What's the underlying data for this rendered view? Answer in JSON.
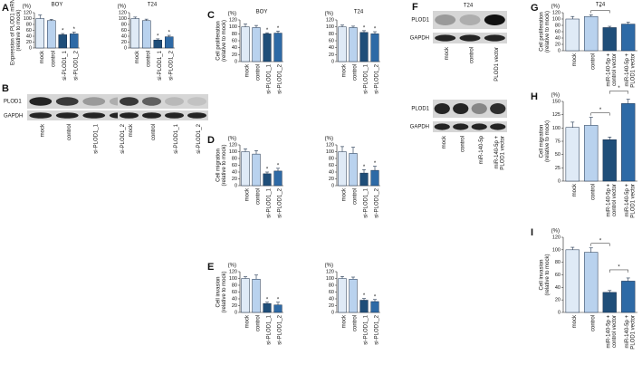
{
  "chart_data": [
    {
      "type": "bar",
      "panel": "A",
      "title": "BOY",
      "yunit": "(%)",
      "ylabel": [
        "Expression of PLOD1 mRNA",
        "(relative to mock)"
      ],
      "categories": [
        "mock",
        "control",
        "si-PLOD1_1",
        "si-PLOD1_2"
      ],
      "values": [
        100,
        93,
        45,
        48
      ],
      "errors": [
        12,
        4,
        4,
        6
      ],
      "stars": [
        null,
        null,
        "*",
        "*"
      ],
      "colors": [
        "#dfeaf6",
        "#b9d2ee",
        "#1f4e79",
        "#2e6aa6"
      ],
      "ylim": [
        0,
        120
      ],
      "yticks": [
        0,
        20,
        40,
        60,
        80,
        100,
        120
      ]
    },
    {
      "type": "bar",
      "title": "T24",
      "yunit": "(%)",
      "categories": [
        "mock",
        "control",
        "si-PLOD1_1",
        "si-PLOD1_2"
      ],
      "values": [
        100,
        93,
        27,
        38
      ],
      "errors": [
        5,
        5,
        4,
        5
      ],
      "stars": [
        null,
        null,
        "*",
        "*"
      ],
      "colors": [
        "#dfeaf6",
        "#b9d2ee",
        "#1f4e79",
        "#2e6aa6"
      ],
      "ylim": [
        0,
        120
      ],
      "yticks": [
        0,
        20,
        40,
        60,
        80,
        100,
        120
      ]
    },
    {
      "type": "bar",
      "panel": "C",
      "title": "BOY",
      "yunit": "(%)",
      "ylabel": [
        "Cell proliferation",
        "(relative to mock)"
      ],
      "categories": [
        "mock",
        "control",
        "si-PLOD1_1",
        "si-PLOD1_2"
      ],
      "values": [
        100,
        98,
        80,
        82
      ],
      "errors": [
        8,
        6,
        3,
        6
      ],
      "stars": [
        null,
        null,
        "*",
        "*"
      ],
      "colors": [
        "#dfeaf6",
        "#b9d2ee",
        "#1f4e79",
        "#2e6aa6"
      ],
      "ylim": [
        0,
        120
      ],
      "yticks": [
        0,
        20,
        40,
        60,
        80,
        100,
        120
      ]
    },
    {
      "type": "bar",
      "title": "T24",
      "yunit": "(%)",
      "categories": [
        "mock",
        "control",
        "si-PLOD1_1",
        "si-PLOD1_2"
      ],
      "values": [
        100,
        98,
        84,
        80
      ],
      "errors": [
        5,
        4,
        5,
        6
      ],
      "stars": [
        null,
        null,
        "*",
        "*"
      ],
      "colors": [
        "#dfeaf6",
        "#b9d2ee",
        "#1f4e79",
        "#2e6aa6"
      ],
      "ylim": [
        0,
        120
      ],
      "yticks": [
        0,
        20,
        40,
        60,
        80,
        100,
        120
      ]
    },
    {
      "type": "bar",
      "panel": "D",
      "yunit": "(%)",
      "ylabel": [
        "Cell migration",
        "(relative to mock)"
      ],
      "categories": [
        "mock",
        "control",
        "si-PLOD1_1",
        "si-PLOD1_2"
      ],
      "values": [
        100,
        93,
        35,
        43
      ],
      "errors": [
        8,
        10,
        5,
        8
      ],
      "stars": [
        null,
        null,
        "*",
        "*"
      ],
      "colors": [
        "#dfeaf6",
        "#b9d2ee",
        "#1f4e79",
        "#2e6aa6"
      ],
      "ylim": [
        0,
        120
      ],
      "yticks": [
        0,
        20,
        40,
        60,
        80,
        100,
        120
      ]
    },
    {
      "type": "bar",
      "yunit": "(%)",
      "categories": [
        "mock",
        "control",
        "si-PLOD1_1",
        "si-PLOD1_2"
      ],
      "values": [
        100,
        95,
        37,
        45
      ],
      "errors": [
        15,
        18,
        10,
        12
      ],
      "stars": [
        null,
        null,
        "*",
        "*"
      ],
      "colors": [
        "#dfeaf6",
        "#b9d2ee",
        "#1f4e79",
        "#2e6aa6"
      ],
      "ylim": [
        0,
        120
      ],
      "yticks": [
        0,
        20,
        40,
        60,
        80,
        100,
        120
      ]
    },
    {
      "type": "bar",
      "panel": "E",
      "yunit": "(%)",
      "ylabel": [
        "Cell invasion",
        "(relative to mock)"
      ],
      "categories": [
        "mock",
        "control",
        "si-PLOD1_1",
        "si-PLOD1_2"
      ],
      "values": [
        100,
        98,
        26,
        22
      ],
      "errors": [
        5,
        12,
        4,
        8
      ],
      "stars": [
        null,
        null,
        "*",
        "*"
      ],
      "colors": [
        "#dfeaf6",
        "#b9d2ee",
        "#1f4e79",
        "#2e6aa6"
      ],
      "ylim": [
        0,
        120
      ],
      "yticks": [
        0,
        20,
        40,
        60,
        80,
        100,
        120
      ]
    },
    {
      "type": "bar",
      "yunit": "(%)",
      "categories": [
        "mock",
        "control",
        "si-PLOD1_1",
        "si-PLOD1_2"
      ],
      "values": [
        100,
        98,
        36,
        32
      ],
      "errors": [
        6,
        6,
        5,
        6
      ],
      "stars": [
        null,
        null,
        "*",
        "*"
      ],
      "colors": [
        "#dfeaf6",
        "#b9d2ee",
        "#1f4e79",
        "#2e6aa6"
      ],
      "ylim": [
        0,
        120
      ],
      "yticks": [
        0,
        20,
        40,
        60,
        80,
        100,
        120
      ]
    },
    {
      "type": "bar",
      "panel": "G",
      "title": "T24",
      "yunit": "(%)",
      "ylabel": [
        "Cell proliferation",
        "(relative to mock)"
      ],
      "categories": [
        "mock",
        "control",
        [
          "miR-140-5p +",
          "control vector"
        ],
        [
          "miR-140-5p +",
          "PLOD1 vector"
        ]
      ],
      "values": [
        100,
        108,
        73,
        84
      ],
      "errors": [
        8,
        5,
        4,
        6
      ],
      "brackets": [
        {
          "between": [
            1,
            2
          ],
          "label": "*"
        }
      ],
      "colors": [
        "#dfeaf6",
        "#b9d2ee",
        "#1f4e79",
        "#2e6aa6"
      ],
      "ylim": [
        0,
        120
      ],
      "yticks": [
        0,
        20,
        40,
        60,
        80,
        100,
        120
      ]
    },
    {
      "type": "bar",
      "panel": "H",
      "yunit": "(%)",
      "ylabel": [
        "Cell migration",
        "(relative to mock)"
      ],
      "categories": [
        "mock",
        "control",
        [
          "miR-140-5p +",
          "control vector"
        ],
        [
          "miR-140-5p +",
          "PLOD1 vector"
        ]
      ],
      "values": [
        101,
        105,
        78,
        146
      ],
      "errors": [
        10,
        15,
        5,
        8
      ],
      "brackets": [
        {
          "between": [
            1,
            2
          ],
          "label": "*"
        },
        {
          "between": [
            2,
            3
          ],
          "label": "*"
        }
      ],
      "colors": [
        "#dfeaf6",
        "#b9d2ee",
        "#1f4e79",
        "#2e6aa6"
      ],
      "ylim": [
        0,
        150
      ],
      "yticks": [
        0,
        25,
        50,
        75,
        100,
        125,
        150
      ]
    },
    {
      "type": "bar",
      "panel": "I",
      "yunit": "(%)",
      "ylabel": [
        "Cell invasion",
        "(relative to mock)"
      ],
      "categories": [
        "mock",
        "control",
        [
          "miR-140-5p +",
          "control vector"
        ],
        [
          "miR-140-5p +",
          "PLOD1 vector"
        ]
      ],
      "values": [
        100,
        96,
        32,
        50
      ],
      "errors": [
        4,
        7,
        3,
        5
      ],
      "brackets": [
        {
          "between": [
            1,
            2
          ],
          "label": "*"
        },
        {
          "between": [
            2,
            3
          ],
          "label": "*"
        }
      ],
      "colors": [
        "#dfeaf6",
        "#b9d2ee",
        "#1f4e79",
        "#2e6aa6"
      ],
      "ylim": [
        0,
        120
      ],
      "yticks": [
        0,
        20,
        40,
        60,
        80,
        100,
        120
      ]
    }
  ],
  "blots": [
    {
      "panel": "B",
      "rows": [
        "PLOD1",
        "GAPDH"
      ],
      "lanes": [
        [
          "mock",
          "control",
          "si-PLOD1_1",
          "si-PLOD1_2"
        ],
        [
          "mock",
          "control",
          "si-PLOD1_1",
          "si-PLOD1_2"
        ]
      ]
    },
    {
      "panel": "F",
      "title": "T24",
      "sections": [
        {
          "rows": [
            "PLOD1",
            "GAPDH"
          ],
          "lanes": [
            "mock",
            "control",
            "PLOD1 vector"
          ]
        },
        {
          "rows": [
            "PLOD1",
            "GAPDH"
          ],
          "lanes": [
            "mock",
            "control",
            "miR-140-5p",
            [
              "miR-140-5p +",
              "PLOD1 vector"
            ]
          ]
        }
      ]
    }
  ]
}
